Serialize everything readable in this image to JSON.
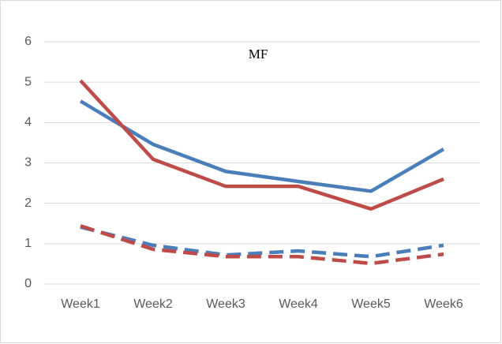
{
  "chart_data": {
    "type": "line",
    "title": "MF",
    "categories": [
      "Week1",
      "Week2",
      "Week3",
      "Week4",
      "Week5",
      "Week6"
    ],
    "series": [
      {
        "color": "#4a7ebb",
        "dashed": false,
        "values": [
          4.53,
          3.46,
          2.79,
          2.54,
          2.3,
          3.34
        ]
      },
      {
        "color": "#be4b48",
        "dashed": false,
        "values": [
          5.04,
          3.09,
          2.42,
          2.42,
          1.86,
          2.6
        ]
      },
      {
        "color": "#4a7ebb",
        "dashed": true,
        "values": [
          1.41,
          0.96,
          0.72,
          0.82,
          0.68,
          0.96
        ]
      },
      {
        "color": "#be4b48",
        "dashed": true,
        "values": [
          1.44,
          0.86,
          0.68,
          0.68,
          0.51,
          0.74
        ]
      }
    ],
    "ylim": [
      0,
      6
    ],
    "yticks": [
      0,
      1,
      2,
      3,
      4,
      5,
      6
    ],
    "grid": true
  }
}
